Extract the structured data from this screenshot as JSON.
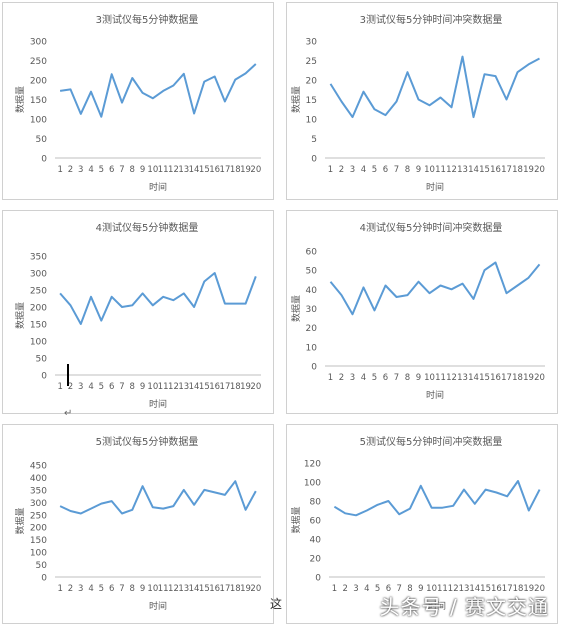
{
  "chart_data": [
    {
      "type": "line",
      "title": "3测试仪每5分钟数据量",
      "xlabel": "时间",
      "ylabel": "数据量",
      "ylim": [
        0,
        300
      ],
      "yticks": [
        "0",
        "50",
        "100",
        "150",
        "200",
        "250",
        "300"
      ],
      "categories": [
        "1",
        "2",
        "3",
        "4",
        "5",
        "6",
        "7",
        "8",
        "9",
        "10",
        "11",
        "12",
        "13",
        "14",
        "15",
        "16",
        "17",
        "18",
        "19",
        "20"
      ],
      "values": [
        172,
        176,
        113,
        170,
        106,
        215,
        142,
        205,
        167,
        153,
        172,
        186,
        216,
        114,
        196,
        209,
        145,
        201,
        217,
        241
      ]
    },
    {
      "type": "line",
      "title": "3测试仪每5分钟时间冲突数据量",
      "xlabel": "时间",
      "ylabel": "数据量",
      "ylim": [
        0,
        30
      ],
      "yticks": [
        "0",
        "5",
        "10",
        "15",
        "20",
        "25",
        "30"
      ],
      "categories": [
        "1",
        "2",
        "3",
        "4",
        "5",
        "6",
        "7",
        "8",
        "9",
        "10",
        "11",
        "12",
        "13",
        "14",
        "15",
        "16",
        "17",
        "18",
        "19",
        "20"
      ],
      "values": [
        19,
        14.5,
        10.5,
        17,
        12.5,
        11,
        14.5,
        22,
        15,
        13.5,
        15.5,
        13,
        26,
        10.5,
        21.5,
        21,
        15,
        22,
        24,
        25.5
      ]
    },
    {
      "type": "line",
      "title": "4测试仪每5分钟数据量",
      "xlabel": "时间",
      "ylabel": "数据量",
      "ylim": [
        0,
        350
      ],
      "yticks": [
        "0",
        "50",
        "100",
        "150",
        "200",
        "250",
        "300",
        "350"
      ],
      "categories": [
        "1",
        "2",
        "3",
        "4",
        "5",
        "6",
        "7",
        "8",
        "9",
        "10",
        "11",
        "12",
        "13",
        "14",
        "15",
        "16",
        "17",
        "18",
        "19",
        "20"
      ],
      "values": [
        240,
        205,
        150,
        230,
        160,
        230,
        200,
        205,
        240,
        205,
        230,
        220,
        240,
        200,
        275,
        300,
        210,
        210,
        210,
        290
      ]
    },
    {
      "type": "line",
      "title": "4测试仪每5分钟时间冲突数据量",
      "xlabel": "时间",
      "ylabel": "数据量",
      "ylim": [
        0,
        60
      ],
      "yticks": [
        "0",
        "10",
        "20",
        "30",
        "40",
        "50",
        "60"
      ],
      "categories": [
        "1",
        "2",
        "3",
        "4",
        "5",
        "6",
        "7",
        "8",
        "9",
        "10",
        "11",
        "12",
        "13",
        "14",
        "15",
        "16",
        "17",
        "18",
        "19",
        "20"
      ],
      "values": [
        44,
        37,
        27,
        41,
        29,
        42,
        36,
        37,
        44,
        38,
        42,
        40,
        43,
        35,
        50,
        54,
        38,
        42,
        46,
        53
      ]
    },
    {
      "type": "line",
      "title": "5测试仪每5分钟数据量",
      "xlabel": "时间",
      "ylabel": "数据量",
      "ylim": [
        0,
        450
      ],
      "yticks": [
        "0",
        "50",
        "100",
        "150",
        "200",
        "250",
        "300",
        "350",
        "400",
        "450"
      ],
      "categories": [
        "1",
        "2",
        "3",
        "4",
        "5",
        "6",
        "7",
        "8",
        "9",
        "10",
        "11",
        "12",
        "13",
        "14",
        "15",
        "16",
        "17",
        "18",
        "19",
        "20"
      ],
      "values": [
        285,
        265,
        255,
        275,
        295,
        305,
        255,
        270,
        365,
        280,
        275,
        285,
        350,
        290,
        350,
        340,
        330,
        385,
        270,
        345
      ]
    },
    {
      "type": "line",
      "title": "5测试仪每5分钟时间冲突数据量",
      "xlabel": "时间",
      "ylabel": "数据量",
      "ylim": [
        0,
        120
      ],
      "yticks": [
        "0",
        "20",
        "40",
        "60",
        "80",
        "100",
        "120"
      ],
      "categories": [
        "1",
        "2",
        "3",
        "4",
        "5",
        "6",
        "7",
        "8",
        "9",
        "10",
        "11",
        "12",
        "13",
        "14",
        "15",
        "16",
        "17",
        "18",
        "19",
        "20"
      ],
      "values": [
        74,
        67,
        65,
        70,
        76,
        80,
        66,
        72,
        96,
        73,
        73,
        75,
        92,
        77,
        92,
        89,
        85,
        101,
        70,
        92
      ]
    }
  ],
  "overlay": {
    "watermark": "头条号 / 赛文交通",
    "fragment": "这"
  },
  "colors": {
    "line": "#5b9bd5",
    "grid": "#d9d9d9",
    "axis": "#bfbfbf",
    "text": "#595959"
  }
}
